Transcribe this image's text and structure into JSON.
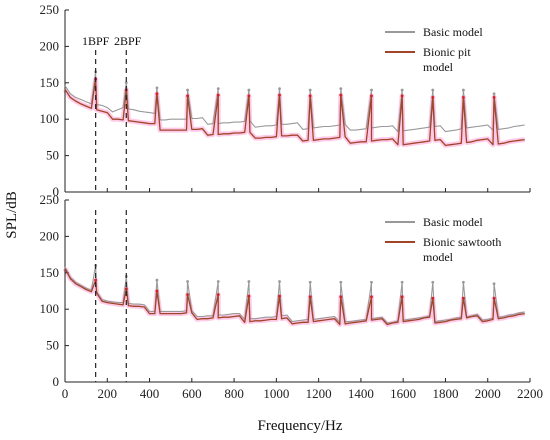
{
  "figure": {
    "ylabel": "SPL/dB",
    "xlabel": "Frequency/Hz",
    "x_ticks": [
      "0",
      "200",
      "400",
      "600",
      "800",
      "1000",
      "1200",
      "1400",
      "1600",
      "1800",
      "2000",
      "2200"
    ],
    "y_ticks": [
      "0",
      "50",
      "100",
      "150",
      "200",
      "250"
    ],
    "annotations": {
      "bpf1": "1BPF",
      "bpf2": "2BPF"
    },
    "colors": {
      "basic": "#999999",
      "bionic": "#a0452a",
      "peaks": "#d42020",
      "halo": "#ff9ed6"
    }
  },
  "chart_data": [
    {
      "type": "line",
      "panel": "top",
      "xlim": [
        0,
        2200
      ],
      "ylim": [
        0,
        250
      ],
      "legend_position": "top-right",
      "bpf_markers": [
        145,
        290
      ],
      "series": [
        {
          "name": "Basic model",
          "color": "#999999",
          "x": [
            0,
            25,
            50,
            75,
            100,
            125,
            150,
            175,
            200,
            225,
            250,
            275,
            300,
            325,
            350,
            375,
            400,
            425,
            450,
            475,
            500,
            525,
            550,
            575,
            600,
            625,
            650,
            675,
            700,
            725,
            750,
            775,
            800,
            825,
            850,
            875,
            900,
            925,
            950,
            975,
            1000,
            1025,
            1050,
            1075,
            1100,
            1125,
            1150,
            1175,
            1200,
            1225,
            1250,
            1275,
            1300,
            1325,
            1350,
            1375,
            1400,
            1425,
            1450,
            1475,
            1500,
            1525,
            1550,
            1575,
            1600,
            1625,
            1650,
            1675,
            1700,
            1725,
            1750,
            1775,
            1800,
            1825,
            1850,
            1875,
            1900,
            1925,
            1950,
            1975,
            2000,
            2025,
            2050,
            2075,
            2100,
            2125,
            2150,
            2175
          ],
          "y": [
            150,
            138,
            132,
            128,
            124,
            120,
            118,
            116,
            112,
            114,
            116,
            118,
            115,
            113,
            110,
            108,
            106,
            104,
            103,
            102,
            102,
            101,
            100,
            99,
            99,
            98,
            98,
            97,
            97,
            96,
            96,
            95,
            95,
            94,
            94,
            94,
            93,
            93,
            93,
            92,
            92,
            92,
            91,
            91,
            91,
            90,
            90,
            90,
            90,
            90,
            89,
            89,
            89,
            89,
            89,
            88,
            88,
            88,
            88,
            88,
            88,
            87,
            87,
            87,
            87,
            87,
            87,
            87,
            87,
            87,
            87,
            87,
            87,
            87,
            87,
            88,
            88,
            88,
            88,
            88,
            88,
            89,
            89,
            89,
            89,
            90,
            90,
            90
          ]
        },
        {
          "name": "Bionic pit model",
          "color": "#a0452a",
          "x": [
            0,
            25,
            50,
            75,
            100,
            125,
            150,
            175,
            200,
            225,
            250,
            275,
            300,
            325,
            350,
            375,
            400,
            425,
            450,
            475,
            500,
            525,
            550,
            575,
            600,
            625,
            650,
            675,
            700,
            725,
            750,
            775,
            800,
            825,
            850,
            875,
            900,
            925,
            950,
            975,
            1000,
            1025,
            1050,
            1075,
            1100,
            1125,
            1150,
            1175,
            1200,
            1225,
            1250,
            1275,
            1300,
            1325,
            1350,
            1375,
            1400,
            1425,
            1450,
            1475,
            1500,
            1525,
            1550,
            1575,
            1600,
            1625,
            1650,
            1675,
            1700,
            1725,
            1750,
            1775,
            1800,
            1825,
            1850,
            1875,
            1900,
            1925,
            1950,
            1975,
            2000,
            2025,
            2050,
            2075,
            2100,
            2125,
            2150,
            2175
          ],
          "y": [
            145,
            133,
            127,
            122,
            118,
            114,
            111,
            108,
            105,
            104,
            103,
            101,
            99,
            97,
            95,
            93,
            91,
            90,
            89,
            88,
            87,
            86,
            85,
            84,
            84,
            83,
            83,
            82,
            82,
            81,
            81,
            80,
            80,
            79,
            79,
            78,
            78,
            77,
            77,
            76,
            76,
            76,
            75,
            75,
            74,
            74,
            74,
            73,
            73,
            73,
            72,
            72,
            72,
            72,
            71,
            71,
            71,
            70,
            70,
            70,
            70,
            69,
            69,
            69,
            68,
            68,
            68,
            68,
            68,
            68,
            68,
            68,
            68,
            68,
            68,
            68,
            68,
            68,
            69,
            69,
            69,
            69,
            69,
            69,
            70,
            70,
            70,
            70
          ]
        }
      ],
      "peaks": {
        "x": [
          145,
          290,
          435,
          580,
          725,
          870,
          1015,
          1160,
          1305,
          1450,
          1595,
          1740,
          1885,
          2030
        ],
        "basic": [
          165,
          150,
          143,
          140,
          142,
          140,
          142,
          140,
          142,
          140,
          140,
          140,
          140,
          135
        ],
        "bionic": [
          155,
          140,
          135,
          132,
          133,
          132,
          133,
          132,
          133,
          132,
          132,
          130,
          130,
          130
        ]
      }
    },
    {
      "type": "line",
      "panel": "bottom",
      "xlim": [
        0,
        2200
      ],
      "ylim": [
        0,
        250
      ],
      "legend_position": "top-right",
      "bpf_markers": [
        145,
        290
      ],
      "series": [
        {
          "name": "Basic model",
          "color": "#999999",
          "x": [
            0,
            25,
            50,
            75,
            100,
            125,
            150,
            175,
            200,
            225,
            250,
            275,
            300,
            325,
            350,
            375,
            400,
            425,
            450,
            475,
            500,
            525,
            550,
            575,
            600,
            625,
            650,
            675,
            700,
            725,
            750,
            775,
            800,
            825,
            850,
            875,
            900,
            925,
            950,
            975,
            1000,
            1025,
            1050,
            1075,
            1100,
            1125,
            1150,
            1175,
            1200,
            1225,
            1250,
            1275,
            1300,
            1325,
            1350,
            1375,
            1400,
            1425,
            1450,
            1475,
            1500,
            1525,
            1550,
            1575,
            1600,
            1625,
            1650,
            1675,
            1700,
            1725,
            1750,
            1775,
            1800,
            1825,
            1850,
            1875,
            1900,
            1925,
            1950,
            1975,
            2000,
            2025,
            2050,
            2075,
            2100,
            2125,
            2150,
            2175
          ],
          "y": [
            160,
            145,
            137,
            132,
            127,
            123,
            120,
            117,
            114,
            112,
            110,
            109,
            107,
            105,
            104,
            102,
            101,
            100,
            99,
            98,
            97,
            96,
            95,
            95,
            94,
            94,
            93,
            93,
            92,
            92,
            91,
            91,
            91,
            90,
            90,
            90,
            89,
            89,
            89,
            88,
            88,
            88,
            88,
            87,
            87,
            87,
            87,
            86,
            86,
            86,
            86,
            86,
            86,
            86,
            85,
            85,
            85,
            85,
            85,
            85,
            85,
            85,
            85,
            86,
            86,
            86,
            86,
            86,
            86,
            87,
            87,
            87,
            87,
            87,
            88,
            88,
            88,
            88,
            89,
            89,
            89,
            90,
            90,
            90,
            91,
            91,
            92,
            92
          ]
        },
        {
          "name": "Bionic sawtooth model",
          "color": "#a0452a",
          "x": [
            0,
            25,
            50,
            75,
            100,
            125,
            150,
            175,
            200,
            225,
            250,
            275,
            300,
            325,
            350,
            375,
            400,
            425,
            450,
            475,
            500,
            525,
            550,
            575,
            600,
            625,
            650,
            675,
            700,
            725,
            750,
            775,
            800,
            825,
            850,
            875,
            900,
            925,
            950,
            975,
            1000,
            1025,
            1050,
            1075,
            1100,
            1125,
            1150,
            1175,
            1200,
            1225,
            1250,
            1275,
            1300,
            1325,
            1350,
            1375,
            1400,
            1425,
            1450,
            1475,
            1500,
            1525,
            1550,
            1575,
            1600,
            1625,
            1650,
            1675,
            1700,
            1725,
            1750,
            1775,
            1800,
            1825,
            1850,
            1875,
            1900,
            1925,
            1950,
            1975,
            2000,
            2025,
            2050,
            2075,
            2100,
            2125,
            2150,
            2175
          ],
          "y": [
            158,
            143,
            135,
            130,
            125,
            121,
            118,
            115,
            112,
            110,
            108,
            106,
            104,
            102,
            101,
            99,
            98,
            97,
            96,
            95,
            94,
            93,
            92,
            92,
            91,
            90,
            90,
            89,
            89,
            88,
            88,
            87,
            87,
            87,
            86,
            86,
            86,
            85,
            85,
            85,
            84,
            84,
            84,
            84,
            84,
            84,
            83,
            83,
            83,
            83,
            83,
            83,
            83,
            83,
            83,
            83,
            83,
            83,
            83,
            83,
            83,
            83,
            84,
            84,
            84,
            84,
            84,
            84,
            85,
            85,
            85,
            85,
            85,
            86,
            86,
            86,
            86,
            87,
            87,
            87,
            87,
            88,
            88,
            88,
            89,
            89,
            90,
            90
          ]
        }
      ],
      "peaks": {
        "x": [
          145,
          290,
          435,
          580,
          725,
          870,
          1015,
          1160,
          1305,
          1450,
          1595,
          1740,
          1885,
          2030
        ],
        "basic": [
          160,
          145,
          140,
          138,
          138,
          138,
          138,
          137,
          137,
          137,
          137,
          137,
          137,
          135
        ],
        "bionic": [
          140,
          128,
          125,
          120,
          120,
          118,
          118,
          117,
          117,
          117,
          117,
          115,
          115,
          115
        ]
      }
    }
  ]
}
